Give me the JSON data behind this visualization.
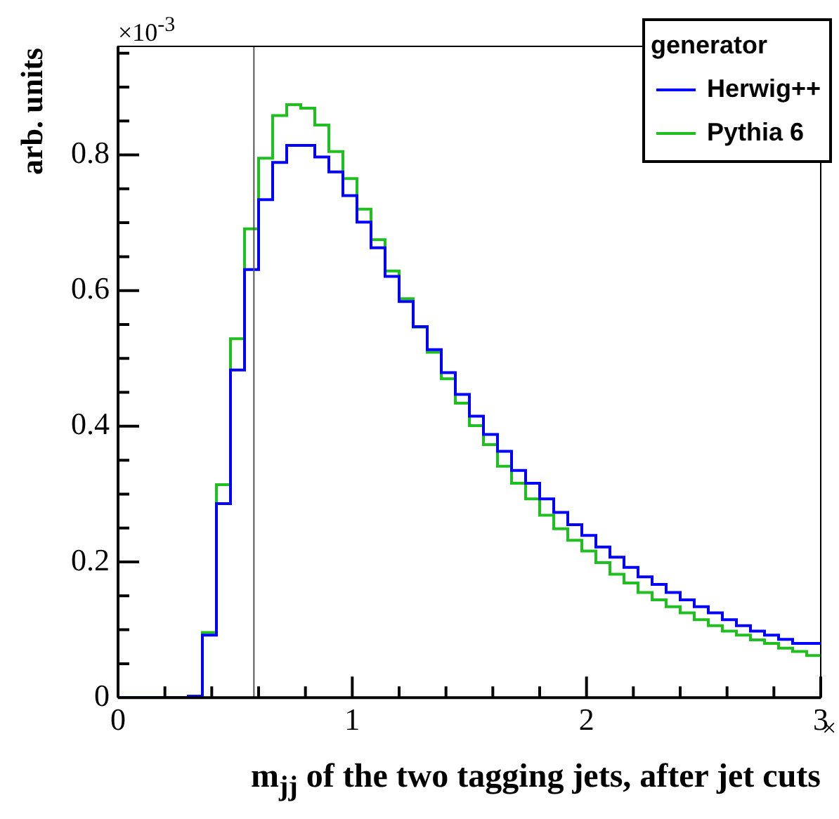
{
  "chart_data": {
    "type": "histogram",
    "xlabel": "m$_{jj}$ of the two tagging jets, after jet cuts",
    "ylabel": "arb. units",
    "legend_title": "generator",
    "annotations": [
      "×10$^{-3}$",
      "×"
    ],
    "bins": [
      0,
      0.06,
      0.12,
      0.18,
      0.24,
      0.3,
      0.36,
      0.42,
      0.48,
      0.54,
      0.6,
      0.66,
      0.72,
      0.78,
      0.84,
      0.9,
      0.96,
      1.02,
      1.08,
      1.14,
      1.2,
      1.26,
      1.32,
      1.38,
      1.44,
      1.5,
      1.56,
      1.62,
      1.68,
      1.74,
      1.8,
      1.86,
      1.92,
      1.98,
      2.04,
      2.1,
      2.16,
      2.22,
      2.28,
      2.34,
      2.4,
      2.46,
      2.52,
      2.58,
      2.64,
      2.7,
      2.76,
      2.82,
      2.88,
      2.94,
      3
    ],
    "series": [
      {
        "name": "Herwig++",
        "color": "#0000ff",
        "values": [
          0,
          0,
          0,
          0,
          0,
          0.002,
          0.092,
          0.286,
          0.483,
          0.631,
          0.734,
          0.789,
          0.814,
          0.814,
          0.797,
          0.775,
          0.74,
          0.701,
          0.663,
          0.621,
          0.584,
          0.547,
          0.513,
          0.479,
          0.447,
          0.415,
          0.388,
          0.363,
          0.335,
          0.316,
          0.293,
          0.273,
          0.255,
          0.239,
          0.222,
          0.207,
          0.192,
          0.178,
          0.167,
          0.155,
          0.144,
          0.134,
          0.125,
          0.115,
          0.106,
          0.098,
          0.092,
          0.086,
          0.08,
          0.08
        ]
      },
      {
        "name": "Pythia 6",
        "color": "#1fbf1f",
        "values": [
          0,
          0,
          0,
          0,
          0,
          0.002,
          0.096,
          0.314,
          0.529,
          0.691,
          0.795,
          0.858,
          0.874,
          0.869,
          0.844,
          0.805,
          0.765,
          0.72,
          0.675,
          0.629,
          0.588,
          0.546,
          0.509,
          0.47,
          0.434,
          0.401,
          0.373,
          0.341,
          0.316,
          0.293,
          0.269,
          0.249,
          0.232,
          0.216,
          0.199,
          0.182,
          0.169,
          0.155,
          0.144,
          0.134,
          0.125,
          0.115,
          0.106,
          0.098,
          0.092,
          0.085,
          0.08,
          0.073,
          0.068,
          0.062
        ]
      }
    ],
    "xlim": [
      0,
      3
    ],
    "xticks": [
      0,
      {
        "value": 0.2,
        "label": null
      },
      {
        "value": 0.4,
        "label": null
      },
      {
        "value": 0.6,
        "label": null
      },
      {
        "value": 0.8,
        "label": null
      },
      1,
      {
        "value": 1.2,
        "label": null
      },
      {
        "value": 1.4,
        "label": null
      },
      {
        "value": 1.6,
        "label": null
      },
      {
        "value": 1.8,
        "label": null
      },
      2,
      {
        "value": 2.2,
        "label": null
      },
      {
        "value": 2.4,
        "label": null
      },
      {
        "value": 2.6,
        "label": null
      },
      {
        "value": 2.8,
        "label": null
      },
      3
    ],
    "ylim": [
      0,
      0.96
    ],
    "yticks": [
      0,
      {
        "value": 0.05,
        "label": null
      },
      {
        "value": 0.1,
        "label": null
      },
      {
        "value": 0.15,
        "label": null
      },
      0.2,
      {
        "value": 0.25,
        "label": null
      },
      {
        "value": 0.3,
        "label": null
      },
      {
        "value": 0.35,
        "label": null
      },
      0.4,
      {
        "value": 0.45,
        "label": null
      },
      {
        "value": 0.5,
        "label": null
      },
      {
        "value": 0.55,
        "label": null
      },
      0.6,
      {
        "value": 0.65,
        "label": null
      },
      {
        "value": 0.7,
        "label": null
      },
      {
        "value": 0.75,
        "label": null
      },
      0.8,
      {
        "value": 0.85,
        "label": null
      },
      {
        "value": 0.9,
        "label": null
      },
      {
        "value": 0.95,
        "label": null
      }
    ],
    "ref_lines": [
      {
        "axis": "x",
        "value": 0.58,
        "color": "#555555"
      }
    ],
    "grid": false,
    "legend": "top right"
  }
}
